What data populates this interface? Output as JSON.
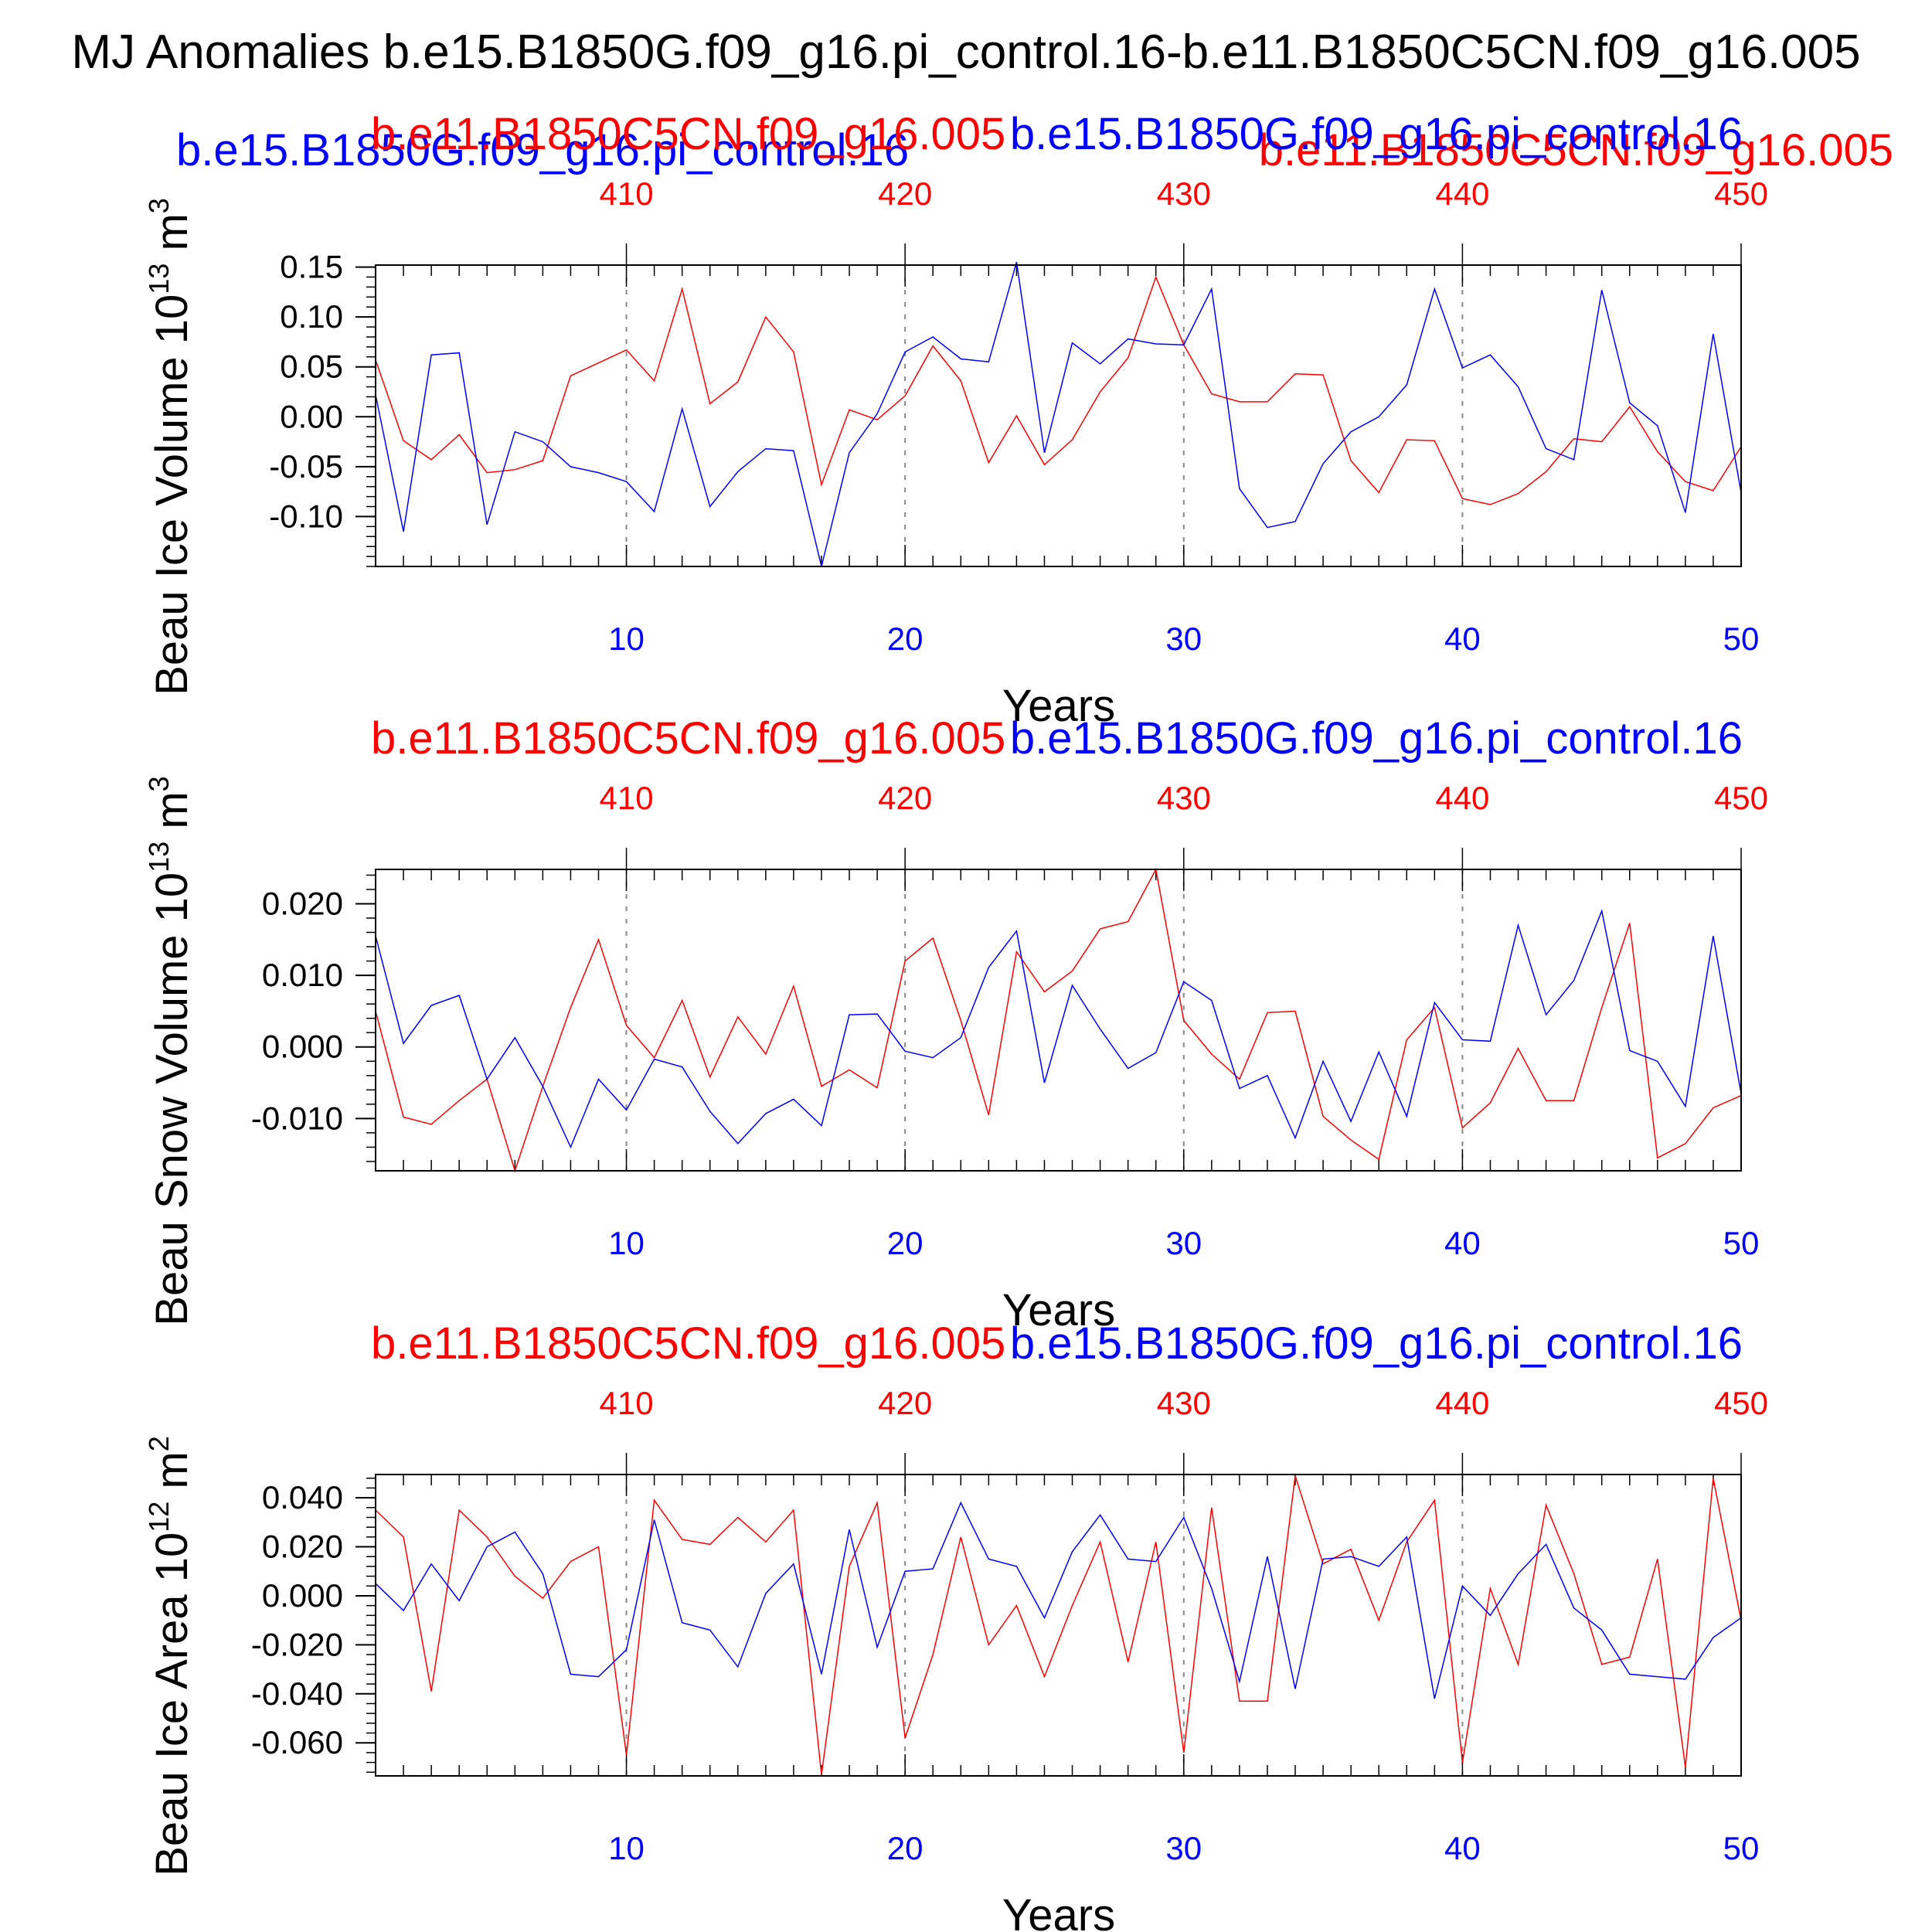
{
  "figure_title": "MJ Anomalies b.e15.B1850G.f09_g16.pi_control.16-b.e11.B1850C5CN.f09_g16.005",
  "legend": {
    "left_red": "b.e11.B1850C5CN.f09_g16.005",
    "right_blue": "b.e15.B1850G.f09_g16.pi_control.16",
    "overlay_blue": "b.e15.B1850G.f09_g16.pi_control.16",
    "overlay_red": "b.e11.B1850C5CN.f09_g16.005"
  },
  "colors": {
    "case1": "#0000ff",
    "case2": "#ff0000",
    "axis": "#000000",
    "grid": "#888888"
  },
  "chart_data": [
    {
      "type": "line",
      "ylabel_main": "Beau Ice Volume 10",
      "ylabel_exp": "13",
      "ylabel_unit": " m",
      "ylabel_unit_exp": "3",
      "xlabel": "Years",
      "xlim": [
        1,
        50
      ],
      "ylim": [
        -0.15,
        0.152
      ],
      "yticks": [
        0.15,
        0.1,
        0.05,
        0.0,
        -0.05,
        -0.1
      ],
      "ytick_labels": [
        "0.15",
        "0.10",
        "0.05",
        "0.00",
        "-0.05",
        "-0.10"
      ],
      "bottom_xticks": [
        10,
        20,
        30,
        40,
        50
      ],
      "bottom_xtick_labels": [
        "10",
        "20",
        "30",
        "40",
        "50"
      ],
      "top_xtick_labels": [
        "410",
        "420",
        "430",
        "440",
        "450"
      ],
      "x": [
        1,
        2,
        3,
        4,
        5,
        6,
        7,
        8,
        9,
        10,
        11,
        12,
        13,
        14,
        15,
        16,
        17,
        18,
        19,
        20,
        21,
        22,
        23,
        24,
        25,
        26,
        27,
        28,
        29,
        30,
        31,
        32,
        33,
        34,
        35,
        36,
        37,
        38,
        39,
        40,
        41,
        42,
        43,
        44,
        45,
        46,
        47,
        48,
        49,
        50
      ],
      "series": [
        {
          "name": "b.e15.B1850G.f09_g16.pi_control.16",
          "color": "#0000ff",
          "values": [
            0.022,
            -0.115,
            0.062,
            0.064,
            -0.108,
            -0.015,
            -0.025,
            -0.05,
            -0.056,
            -0.065,
            -0.095,
            0.008,
            -0.09,
            -0.055,
            -0.032,
            -0.034,
            -0.15,
            -0.036,
            0.003,
            0.065,
            0.08,
            0.058,
            0.055,
            0.155,
            -0.036,
            0.074,
            0.053,
            0.078,
            0.073,
            0.072,
            0.128,
            -0.072,
            -0.111,
            -0.105,
            -0.047,
            -0.015,
            0.0,
            0.032,
            0.128,
            0.049,
            0.062,
            0.03,
            -0.032,
            -0.043,
            0.127,
            0.014,
            -0.009,
            -0.096,
            0.083,
            -0.076
          ]
        },
        {
          "name": "b.e11.B1850C5CN.f09_g16.005",
          "color": "#ff0000",
          "values": [
            0.057,
            -0.024,
            -0.043,
            -0.018,
            -0.056,
            -0.053,
            -0.044,
            0.041,
            0.054,
            0.067,
            0.036,
            0.128,
            0.013,
            0.035,
            0.1,
            0.065,
            -0.068,
            0.007,
            -0.003,
            0.021,
            0.071,
            0.036,
            -0.046,
            0.001,
            -0.048,
            -0.023,
            0.025,
            0.059,
            0.14,
            0.072,
            0.023,
            0.015,
            0.015,
            0.043,
            0.042,
            -0.044,
            -0.076,
            -0.023,
            -0.024,
            -0.082,
            -0.088,
            -0.077,
            -0.055,
            -0.022,
            -0.025,
            0.01,
            -0.035,
            -0.065,
            -0.074,
            -0.03
          ]
        }
      ]
    },
    {
      "type": "line",
      "ylabel_main": "Beau Snow Volume 10",
      "ylabel_exp": "13",
      "ylabel_unit": " m",
      "ylabel_unit_exp": "3",
      "xlabel": "Years",
      "xlim": [
        1,
        50
      ],
      "ylim": [
        -0.0173,
        0.0248
      ],
      "yticks": [
        0.02,
        0.01,
        0.0,
        -0.01
      ],
      "ytick_labels": [
        "0.020",
        "0.010",
        "0.000",
        "-0.010"
      ],
      "bottom_xticks": [
        10,
        20,
        30,
        40,
        50
      ],
      "bottom_xtick_labels": [
        "10",
        "20",
        "30",
        "40",
        "50"
      ],
      "top_xtick_labels": [
        "410",
        "420",
        "430",
        "440",
        "450"
      ],
      "x": [
        1,
        2,
        3,
        4,
        5,
        6,
        7,
        8,
        9,
        10,
        11,
        12,
        13,
        14,
        15,
        16,
        17,
        18,
        19,
        20,
        21,
        22,
        23,
        24,
        25,
        26,
        27,
        28,
        29,
        30,
        31,
        32,
        33,
        34,
        35,
        36,
        37,
        38,
        39,
        40,
        41,
        42,
        43,
        44,
        45,
        46,
        47,
        48,
        49,
        50
      ],
      "series": [
        {
          "name": "b.e15.B1850G.f09_g16.pi_control.16",
          "color": "#0000ff",
          "values": [
            0.0155,
            0.0005,
            0.0058,
            0.0072,
            -0.0045,
            0.0013,
            -0.0055,
            -0.014,
            -0.0045,
            -0.0088,
            -0.0017,
            -0.0028,
            -0.009,
            -0.0135,
            -0.0093,
            -0.0073,
            -0.011,
            0.0045,
            0.0046,
            -0.0006,
            -0.0015,
            0.0013,
            0.0111,
            0.0162,
            -0.005,
            0.0086,
            0.0025,
            -0.003,
            -0.0008,
            0.0091,
            0.0065,
            -0.0058,
            -0.004,
            -0.0127,
            -0.002,
            -0.0104,
            -0.0007,
            -0.0097,
            0.0062,
            0.001,
            0.0008,
            0.017,
            0.0045,
            0.0093,
            0.019,
            -0.0005,
            -0.002,
            -0.0083,
            0.0155,
            -0.0065
          ]
        },
        {
          "name": "b.e11.B1850C5CN.f09_g16.005",
          "color": "#ff0000",
          "values": [
            0.005,
            -0.0098,
            -0.0108,
            -0.0075,
            -0.0045,
            -0.0173,
            -0.0055,
            0.0055,
            0.015,
            0.003,
            -0.0015,
            0.0065,
            -0.0042,
            0.0042,
            -0.001,
            0.0085,
            -0.0055,
            -0.0032,
            -0.0057,
            0.012,
            0.0152,
            0.0037,
            -0.0095,
            0.0133,
            0.0077,
            0.0106,
            0.0165,
            0.0175,
            0.0248,
            0.0037,
            -0.001,
            -0.0045,
            0.0048,
            0.005,
            -0.0097,
            -0.013,
            -0.0157,
            0.001,
            0.0055,
            -0.0113,
            -0.0078,
            -0.0002,
            -0.0075,
            -0.0075,
            0.0055,
            0.0173,
            -0.0155,
            -0.0135,
            -0.0085,
            -0.0068
          ]
        }
      ]
    },
    {
      "type": "line",
      "ylabel_main": "Beau Ice Area 10",
      "ylabel_exp": "12",
      "ylabel_unit": " m",
      "ylabel_unit_exp": "2",
      "xlabel": "Years",
      "xlim": [
        1,
        50
      ],
      "ylim": [
        -0.0735,
        0.0495
      ],
      "yticks": [
        0.04,
        0.02,
        0.0,
        -0.02,
        -0.04,
        -0.06
      ],
      "ytick_labels": [
        "0.040",
        "0.020",
        "0.000",
        "-0.020",
        "-0.040",
        "-0.060"
      ],
      "bottom_xticks": [
        10,
        20,
        30,
        40,
        50
      ],
      "bottom_xtick_labels": [
        "10",
        "20",
        "30",
        "40",
        "50"
      ],
      "top_xtick_labels": [
        "410",
        "420",
        "430",
        "440",
        "450"
      ],
      "x": [
        1,
        2,
        3,
        4,
        5,
        6,
        7,
        8,
        9,
        10,
        11,
        12,
        13,
        14,
        15,
        16,
        17,
        18,
        19,
        20,
        21,
        22,
        23,
        24,
        25,
        26,
        27,
        28,
        29,
        30,
        31,
        32,
        33,
        34,
        35,
        36,
        37,
        38,
        39,
        40,
        41,
        42,
        43,
        44,
        45,
        46,
        47,
        48,
        49,
        50
      ],
      "series": [
        {
          "name": "b.e15.B1850G.f09_g16.pi_control.16",
          "color": "#0000ff",
          "values": [
            0.005,
            -0.006,
            0.013,
            -0.002,
            0.02,
            0.026,
            0.009,
            -0.032,
            -0.033,
            -0.022,
            0.031,
            -0.011,
            -0.014,
            -0.029,
            0.001,
            0.013,
            -0.032,
            0.027,
            -0.021,
            0.01,
            0.011,
            0.038,
            0.015,
            0.012,
            -0.009,
            0.018,
            0.033,
            0.015,
            0.014,
            0.032,
            0.003,
            -0.035,
            0.016,
            -0.038,
            0.015,
            0.016,
            0.012,
            0.024,
            -0.042,
            0.004,
            -0.008,
            0.009,
            0.021,
            -0.005,
            -0.014,
            -0.032,
            -0.033,
            -0.034,
            -0.017,
            -0.009
          ]
        },
        {
          "name": "b.e11.B1850C5CN.f09_g16.005",
          "color": "#ff0000",
          "values": [
            0.035,
            0.024,
            -0.039,
            0.035,
            0.024,
            0.008,
            -0.001,
            0.014,
            0.02,
            -0.065,
            0.039,
            0.023,
            0.021,
            0.032,
            0.022,
            0.035,
            -0.073,
            0.012,
            0.038,
            -0.058,
            -0.024,
            0.024,
            -0.02,
            -0.004,
            -0.033,
            -0.004,
            0.022,
            -0.027,
            0.022,
            -0.064,
            0.036,
            -0.043,
            -0.043,
            0.049,
            0.013,
            0.019,
            -0.01,
            0.022,
            0.039,
            -0.068,
            0.003,
            -0.028,
            0.037,
            0.009,
            -0.028,
            -0.025,
            0.015,
            -0.07,
            0.048,
            -0.01
          ]
        }
      ]
    }
  ]
}
